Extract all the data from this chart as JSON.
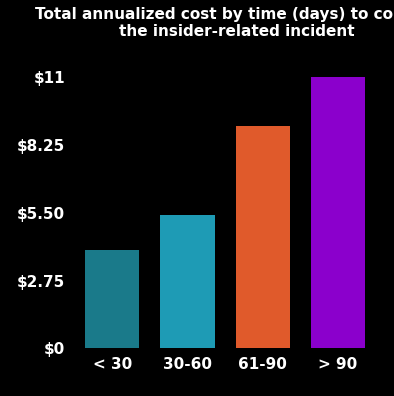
{
  "categories": [
    "< 30",
    "30-60",
    "61-90",
    "> 90"
  ],
  "values": [
    4.0,
    5.4,
    9.0,
    11.0
  ],
  "bar_colors": [
    "#1a7a8a",
    "#1e9bb5",
    "#e05a2b",
    "#8b00cc"
  ],
  "title_line1": "Total annualized cost by time (days) to contain",
  "title_line2": "the insider-related incident",
  "yticks": [
    0,
    2.75,
    5.5,
    8.25,
    11
  ],
  "ytick_labels": [
    "$0",
    "$2.75",
    "$5.50",
    "$8.25",
    "$11"
  ],
  "ylim": [
    0,
    12.2
  ],
  "background_color": "#000000",
  "text_color": "#ffffff",
  "title_fontsize": 11.0,
  "tick_fontsize": 11,
  "xlabel_fontsize": 11,
  "bar_width": 0.72,
  "figsize": [
    3.94,
    3.96
  ],
  "dpi": 100
}
